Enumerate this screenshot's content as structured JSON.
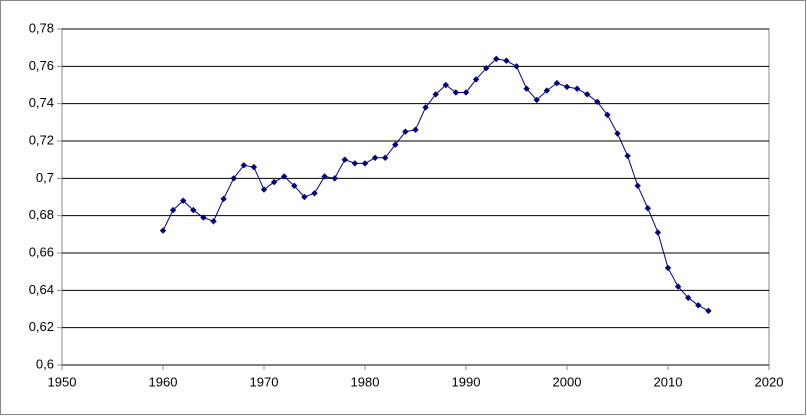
{
  "chart_data": {
    "type": "line",
    "color": "#000080",
    "grid": true,
    "x": [
      1960,
      1961,
      1962,
      1963,
      1964,
      1965,
      1966,
      1967,
      1968,
      1969,
      1970,
      1971,
      1972,
      1973,
      1974,
      1975,
      1976,
      1977,
      1978,
      1979,
      1980,
      1981,
      1982,
      1983,
      1984,
      1985,
      1986,
      1987,
      1988,
      1989,
      1990,
      1991,
      1992,
      1993,
      1994,
      1995,
      1996,
      1997,
      1998,
      1999,
      2000,
      2001,
      2002,
      2003,
      2004,
      2005,
      2006,
      2007,
      2008,
      2009,
      2010,
      2011,
      2012,
      2013,
      2014
    ],
    "values": [
      0.672,
      0.683,
      0.688,
      0.683,
      0.679,
      0.677,
      0.689,
      0.7,
      0.707,
      0.706,
      0.694,
      0.698,
      0.701,
      0.696,
      0.69,
      0.692,
      0.701,
      0.7,
      0.71,
      0.708,
      0.708,
      0.711,
      0.711,
      0.718,
      0.725,
      0.726,
      0.738,
      0.745,
      0.75,
      0.746,
      0.746,
      0.753,
      0.759,
      0.764,
      0.763,
      0.76,
      0.748,
      0.742,
      0.747,
      0.751,
      0.749,
      0.748,
      0.745,
      0.741,
      0.734,
      0.724,
      0.712,
      0.696,
      0.684,
      0.671,
      0.652,
      0.642,
      0.636,
      0.632,
      0.629
    ],
    "xlim": [
      1950,
      2020
    ],
    "xticks": [
      1950,
      1960,
      1970,
      1980,
      1990,
      2000,
      2010,
      2020
    ],
    "ylim": [
      0.6,
      0.78
    ],
    "yticks": [
      {
        "value": 0.6,
        "label": "0,6"
      },
      {
        "value": 0.62,
        "label": "0,62"
      },
      {
        "value": 0.64,
        "label": "0,64"
      },
      {
        "value": 0.66,
        "label": "0,66"
      },
      {
        "value": 0.68,
        "label": "0,68"
      },
      {
        "value": 0.7,
        "label": "0,7"
      },
      {
        "value": 0.72,
        "label": "0,72"
      },
      {
        "value": 0.74,
        "label": "0,74"
      },
      {
        "value": 0.76,
        "label": "0,76"
      },
      {
        "value": 0.78,
        "label": "0,78"
      }
    ]
  }
}
